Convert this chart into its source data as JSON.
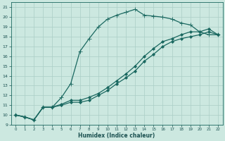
{
  "xlabel": "Humidex (Indice chaleur)",
  "ylabel": "",
  "xlim": [
    -0.5,
    22.5
  ],
  "ylim": [
    9,
    21.5
  ],
  "xticks": [
    0,
    1,
    2,
    3,
    4,
    5,
    6,
    7,
    8,
    9,
    10,
    11,
    12,
    13,
    14,
    15,
    16,
    17,
    18,
    19,
    20,
    21,
    22
  ],
  "yticks": [
    9,
    10,
    11,
    12,
    13,
    14,
    15,
    16,
    17,
    18,
    19,
    20,
    21
  ],
  "bg_color": "#cce8e0",
  "grid_color": "#aacec6",
  "line_color": "#1a6860",
  "lines": [
    {
      "x": [
        0,
        1,
        2,
        3,
        4,
        5,
        6,
        7,
        8,
        9,
        10,
        11,
        12,
        13,
        14,
        15,
        16,
        17,
        18,
        19,
        20,
        21,
        22
      ],
      "y": [
        10,
        9.8,
        9.5,
        10.8,
        10.8,
        11.8,
        13.2,
        16.5,
        17.8,
        19.0,
        19.8,
        20.2,
        20.5,
        20.8,
        20.2,
        20.1,
        20.0,
        19.8,
        19.4,
        19.2,
        18.5,
        18.2,
        18.2
      ],
      "marker": "+",
      "ms": 4,
      "lw": 0.9
    },
    {
      "x": [
        0,
        1,
        2,
        3,
        4,
        5,
        6,
        7,
        8,
        9,
        10,
        11,
        12,
        13,
        14,
        15,
        16,
        17,
        18,
        19,
        20,
        21,
        22
      ],
      "y": [
        10,
        9.8,
        9.5,
        10.8,
        10.8,
        11.1,
        11.5,
        11.5,
        11.8,
        12.2,
        12.8,
        13.5,
        14.2,
        15.0,
        16.0,
        16.8,
        17.5,
        17.8,
        18.2,
        18.5,
        18.5,
        18.8,
        18.2
      ],
      "marker": "D",
      "ms": 2,
      "lw": 0.9
    },
    {
      "x": [
        0,
        1,
        2,
        3,
        4,
        5,
        6,
        7,
        8,
        9,
        10,
        11,
        12,
        13,
        14,
        15,
        16,
        17,
        18,
        19,
        20,
        21,
        22
      ],
      "y": [
        10,
        9.8,
        9.5,
        10.8,
        10.8,
        11.0,
        11.3,
        11.3,
        11.5,
        12.0,
        12.5,
        13.2,
        13.8,
        14.5,
        15.5,
        16.2,
        17.0,
        17.5,
        17.8,
        18.0,
        18.2,
        18.5,
        18.2
      ],
      "marker": "D",
      "ms": 2,
      "lw": 0.9
    }
  ]
}
